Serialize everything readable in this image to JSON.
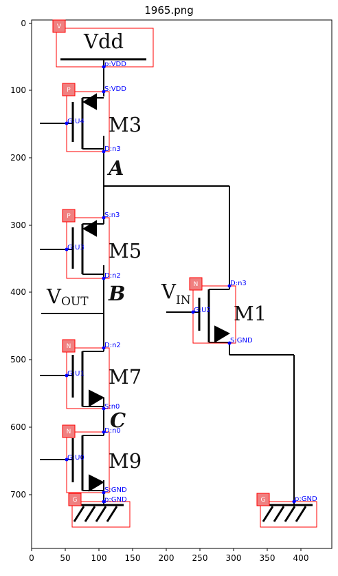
{
  "title": "1965.png",
  "x_ticks": [
    "0",
    "50",
    "100",
    "150",
    "200",
    "250",
    "300",
    "350",
    "400"
  ],
  "y_ticks": [
    "0",
    "100",
    "200",
    "300",
    "400",
    "500",
    "600",
    "700"
  ],
  "circuit_text": {
    "vdd": "Vdd",
    "m3": "M3",
    "m5": "M5",
    "m7": "M7",
    "m9": "M9",
    "m1": "M1",
    "node_a": "A",
    "node_b": "B",
    "node_c": "C",
    "vout_main": "V",
    "vout_sub": "OUT",
    "vin_main": "V",
    "vin_sub": "IN"
  },
  "component_badges": {
    "vdd": "V",
    "m3": "P",
    "m5": "P",
    "m7": "N",
    "m9": "N",
    "m1": "N",
    "gnd_left": "G",
    "gnd_right": "G"
  },
  "pin_labels": {
    "vdd_p": "p:VDD",
    "m3_s": "S:VDD",
    "m3_g": "G:U4",
    "m3_d": "D:n3",
    "m5_s": "S:n3",
    "m5_g": "G:U3",
    "m5_d": "D:n2",
    "m7_d": "D:n2",
    "m7_g": "G:U1",
    "m7_s": "S:n0",
    "m9_d": "D:n0",
    "m9_g": "G:U0",
    "m9_s": "S:GND",
    "gnd_left_p": "p:GND",
    "m1_d": "D:n3",
    "m1_g": "G:U2",
    "m1_s": "S:GND",
    "gnd_right_p": "p:GND"
  },
  "colors": {
    "box": "#ff0000",
    "badge_fill": "#f08080",
    "pin": "#0000ff",
    "wire": "#000000"
  }
}
